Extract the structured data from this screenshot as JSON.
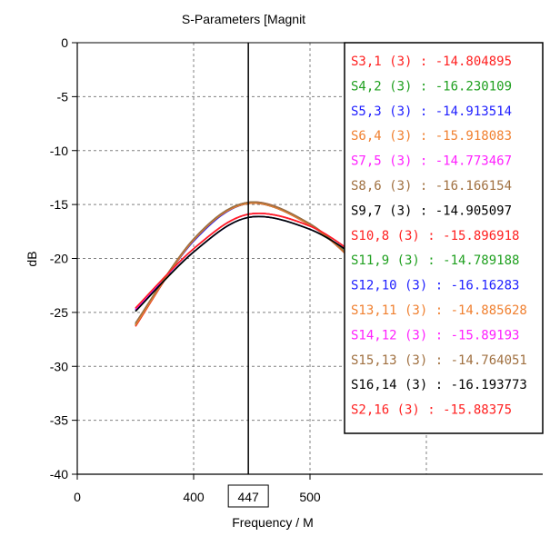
{
  "chart_data": {
    "type": "line",
    "title": "S-Parameters [Magnit",
    "xlabel": "Frequency / M",
    "ylabel": "dB",
    "x_tick_labels": [
      "0",
      "400",
      "500"
    ],
    "y_ticks": [
      0,
      -5,
      -10,
      -15,
      -20,
      -25,
      -30,
      -35,
      -40
    ],
    "xlim": [
      300,
      700
    ],
    "ylim": [
      -40,
      0
    ],
    "grid": true,
    "legend_position": "top-right",
    "marker": {
      "x": 447,
      "label": "447"
    },
    "series": [
      {
        "name": "S3,1 (3)",
        "marker_value": "-14.804895",
        "color": "#ff2020",
        "x": [
          350,
          400,
          447,
          500,
          545
        ],
        "y": [
          -26.3,
          -18.3,
          -14.8,
          -16.8,
          -21.1
        ]
      },
      {
        "name": "S4,2 (3)",
        "marker_value": "-16.230109",
        "color": "#20a020",
        "x": [
          350,
          400,
          447,
          500,
          545
        ],
        "y": [
          -24.9,
          -19.4,
          -16.2,
          -17.3,
          -20.3
        ]
      },
      {
        "name": "S5,3 (3)",
        "marker_value": "-14.913514",
        "color": "#2020ff",
        "x": [
          350,
          400,
          447,
          500,
          545
        ],
        "y": [
          -26.0,
          -18.4,
          -14.9,
          -16.9,
          -21.0
        ]
      },
      {
        "name": "S6,4 (3)",
        "marker_value": "-15.918083",
        "color": "#f08030",
        "x": [
          350,
          400,
          447,
          500,
          545
        ],
        "y": [
          -24.6,
          -19.1,
          -15.9,
          -17.0,
          -20.1
        ]
      },
      {
        "name": "S7,5 (3)",
        "marker_value": "-14.773467",
        "color": "#ff20ff",
        "x": [
          350,
          400,
          447,
          500,
          545
        ],
        "y": [
          -26.1,
          -18.2,
          -14.8,
          -16.8,
          -21.0
        ]
      },
      {
        "name": "S8,6 (3)",
        "marker_value": "-16.166154",
        "color": "#a07040",
        "x": [
          350,
          400,
          447,
          500,
          545
        ],
        "y": [
          -24.8,
          -19.4,
          -16.2,
          -17.3,
          -20.2
        ]
      },
      {
        "name": "S9,7 (3)",
        "marker_value": "-14.905097",
        "color": "#000000",
        "x": [
          350,
          400,
          447,
          500,
          545
        ],
        "y": [
          -26.2,
          -18.3,
          -14.9,
          -16.9,
          -21.0
        ]
      },
      {
        "name": "S10,8 (3)",
        "marker_value": "-15.896918",
        "color": "#ff2020",
        "x": [
          350,
          400,
          447,
          500,
          545
        ],
        "y": [
          -24.7,
          -19.1,
          -15.9,
          -17.0,
          -20.1
        ]
      },
      {
        "name": "S11,9 (3)",
        "marker_value": "-14.789188",
        "color": "#20a020",
        "x": [
          350,
          400,
          447,
          500,
          545
        ],
        "y": [
          -26.1,
          -18.2,
          -14.8,
          -16.8,
          -21.0
        ]
      },
      {
        "name": "S12,10 (3)",
        "marker_value": "-16.16283",
        "color": "#2020ff",
        "x": [
          350,
          400,
          447,
          500,
          545
        ],
        "y": [
          -24.8,
          -19.4,
          -16.2,
          -17.3,
          -20.2
        ]
      },
      {
        "name": "S13,11 (3)",
        "marker_value": "-14.885628",
        "color": "#f08030",
        "x": [
          350,
          400,
          447,
          500,
          545
        ],
        "y": [
          -26.2,
          -18.3,
          -14.9,
          -16.9,
          -21.0
        ]
      },
      {
        "name": "S14,12 (3)",
        "marker_value": "-15.89193",
        "color": "#ff20ff",
        "x": [
          350,
          400,
          447,
          500,
          545
        ],
        "y": [
          -24.7,
          -19.1,
          -15.9,
          -17.0,
          -20.1
        ]
      },
      {
        "name": "S15,13 (3)",
        "marker_value": "-14.764051",
        "color": "#a07040",
        "x": [
          350,
          400,
          447,
          500,
          545
        ],
        "y": [
          -26.0,
          -18.2,
          -14.8,
          -16.8,
          -20.9
        ]
      },
      {
        "name": "S16,14 (3)",
        "marker_value": "-16.193773",
        "color": "#000000",
        "x": [
          350,
          400,
          447,
          500,
          545
        ],
        "y": [
          -24.9,
          -19.4,
          -16.2,
          -17.3,
          -20.2
        ]
      },
      {
        "name": "S2,16 (3)",
        "marker_value": "-15.88375",
        "color": "#ff2020",
        "x": [
          350,
          400,
          447,
          500,
          545
        ],
        "y": [
          -24.6,
          -19.1,
          -15.9,
          -17.0,
          -20.1
        ]
      }
    ]
  }
}
